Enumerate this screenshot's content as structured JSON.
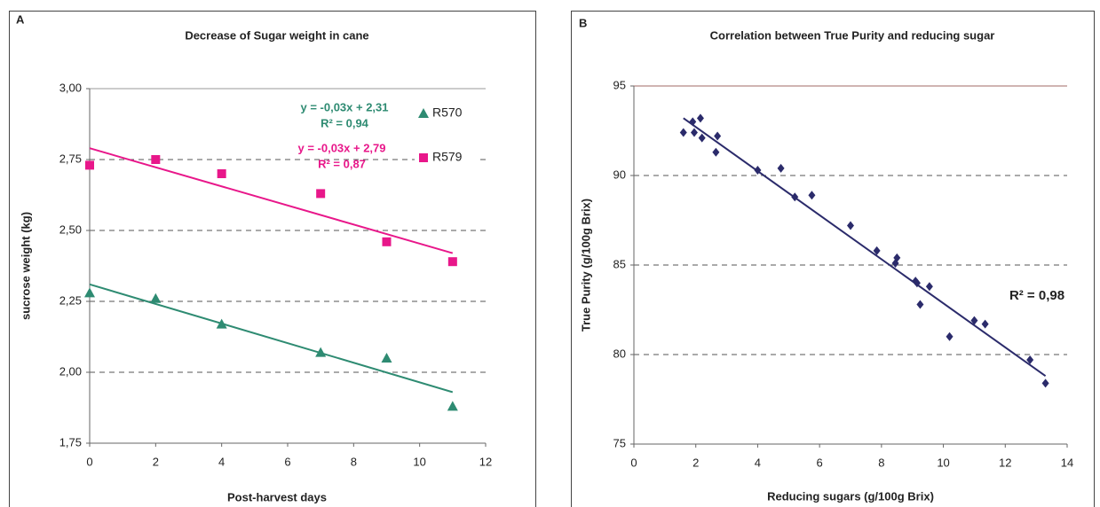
{
  "chart_data": [
    {
      "type": "scatter",
      "panel_label": "A",
      "title": "Decrease of Sugar weight in cane",
      "x_label": "Post-harvest days",
      "y_label": "sucrose weight (kg)",
      "x": [
        0,
        2,
        4,
        7,
        9,
        11
      ],
      "series": [
        {
          "name": "R570",
          "color": "#2e8b72",
          "marker": "triangle",
          "values": [
            2.28,
            2.26,
            2.17,
            2.07,
            2.05,
            1.88
          ],
          "trend": {
            "x": [
              0,
              11
            ],
            "values": [
              2.31,
              1.93
            ]
          }
        },
        {
          "name": "R579",
          "color": "#e8178a",
          "marker": "square",
          "values": [
            2.73,
            2.75,
            2.7,
            2.63,
            2.46,
            2.39
          ],
          "trend": {
            "x": [
              0,
              11
            ],
            "values": [
              2.79,
              2.42
            ]
          }
        }
      ],
      "annotations": [
        {
          "text": "y = -0,03x + 2,31",
          "color": "#2e8b72"
        },
        {
          "text": "R² = 0,94",
          "color": "#2e8b72"
        },
        {
          "text": "y = -0,03x + 2,79",
          "color": "#e8178a"
        },
        {
          "text": "R² = 0,87",
          "color": "#e8178a"
        }
      ],
      "xlim": [
        0,
        12
      ],
      "xticks": [
        0,
        2,
        4,
        6,
        8,
        10,
        12
      ],
      "ylim": [
        1.75,
        3
      ],
      "yticks": [
        {
          "value": 1.75,
          "label": "1,75"
        },
        {
          "value": 2,
          "label": "2,00"
        },
        {
          "value": 2.25,
          "label": "2,25"
        },
        {
          "value": 2.5,
          "label": "2,50"
        },
        {
          "value": 2.75,
          "label": "2,75"
        },
        {
          "value": 3,
          "label": "3,00"
        }
      ],
      "grid": true,
      "legend": "right"
    },
    {
      "type": "scatter",
      "panel_label": "B",
      "title": "Correlation between True Purity and reducing sugar",
      "x_label": "Reducing sugars (g/100g Brix)",
      "y_label": "True Purity (g/100g Brix)",
      "color": "#2b2b6b",
      "marker": "diamond",
      "x": [
        1.6,
        1.9,
        1.95,
        2.15,
        2.2,
        2.65,
        2.7,
        4.0,
        4.75,
        5.2,
        5.75,
        7.0,
        7.85,
        8.45,
        8.5,
        9.1,
        9.15,
        9.25,
        9.55,
        10.2,
        11.0,
        11.35,
        12.8,
        13.3
      ],
      "values": [
        92.4,
        93.0,
        92.4,
        93.2,
        92.1,
        91.3,
        92.2,
        90.3,
        90.4,
        88.8,
        88.9,
        87.2,
        85.8,
        85.1,
        85.4,
        84.1,
        84.0,
        82.8,
        83.8,
        81.0,
        81.9,
        81.7,
        79.7,
        78.4
      ],
      "trend": {
        "x": [
          1.6,
          13.3
        ],
        "values": [
          93.2,
          78.8
        ]
      },
      "annotations": [
        {
          "text": "R² = 0,98",
          "color": "#222222"
        }
      ],
      "xlim": [
        0,
        14
      ],
      "xticks": [
        0,
        2,
        4,
        6,
        8,
        10,
        12,
        14
      ],
      "ylim": [
        75,
        95
      ],
      "yticks": [
        75,
        80,
        85,
        90,
        95
      ],
      "grid": true
    }
  ]
}
